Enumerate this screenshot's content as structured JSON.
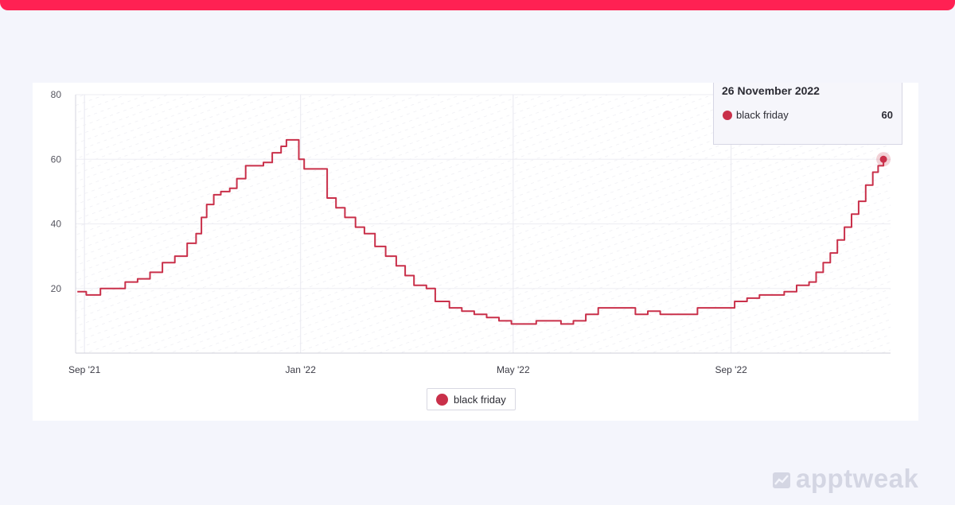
{
  "brand": {
    "name": "apptweak",
    "icon": "chart-logo-icon"
  },
  "colors": {
    "accent_bar": "#ff2153",
    "series": "#c9304a",
    "grid": "#e6e6ee"
  },
  "tooltip": {
    "date": "26 November 2022",
    "series": "black friday",
    "value": "60"
  },
  "legend": {
    "label": "black friday"
  },
  "chart_data": {
    "type": "line",
    "title": "",
    "xlabel": "",
    "ylabel": "",
    "ylim": [
      0,
      80
    ],
    "yticks": [
      20,
      40,
      60,
      80
    ],
    "xlim": [
      "2021-08-27",
      "2022-11-30"
    ],
    "xticks": [
      {
        "date": "2021-09-01",
        "label": "Sep '21"
      },
      {
        "date": "2022-01-01",
        "label": "Jan '22"
      },
      {
        "date": "2022-05-01",
        "label": "May '22"
      },
      {
        "date": "2022-09-01",
        "label": "Sep '22"
      }
    ],
    "grid": true,
    "legend_position": "bottom-center",
    "series": [
      {
        "name": "black friday",
        "color": "#c9304a",
        "points": [
          [
            "2021-08-28",
            19
          ],
          [
            "2021-09-02",
            18
          ],
          [
            "2021-09-10",
            20
          ],
          [
            "2021-09-17",
            20
          ],
          [
            "2021-09-24",
            22
          ],
          [
            "2021-10-01",
            23
          ],
          [
            "2021-10-08",
            25
          ],
          [
            "2021-10-15",
            28
          ],
          [
            "2021-10-22",
            30
          ],
          [
            "2021-10-29",
            34
          ],
          [
            "2021-11-03",
            37
          ],
          [
            "2021-11-06",
            42
          ],
          [
            "2021-11-09",
            46
          ],
          [
            "2021-11-13",
            49
          ],
          [
            "2021-11-17",
            50
          ],
          [
            "2021-11-22",
            51
          ],
          [
            "2021-11-26",
            54
          ],
          [
            "2021-12-01",
            58
          ],
          [
            "2021-12-06",
            58
          ],
          [
            "2021-12-11",
            59
          ],
          [
            "2021-12-16",
            62
          ],
          [
            "2021-12-21",
            64
          ],
          [
            "2021-12-24",
            66
          ],
          [
            "2021-12-28",
            66
          ],
          [
            "2021-12-31",
            60
          ],
          [
            "2022-01-03",
            57
          ],
          [
            "2022-01-11",
            57
          ],
          [
            "2022-01-16",
            48
          ],
          [
            "2022-01-21",
            45
          ],
          [
            "2022-01-26",
            42
          ],
          [
            "2022-02-01",
            39
          ],
          [
            "2022-02-06",
            37
          ],
          [
            "2022-02-12",
            33
          ],
          [
            "2022-02-18",
            30
          ],
          [
            "2022-02-24",
            27
          ],
          [
            "2022-03-01",
            24
          ],
          [
            "2022-03-06",
            21
          ],
          [
            "2022-03-13",
            20
          ],
          [
            "2022-03-18",
            16
          ],
          [
            "2022-03-26",
            14
          ],
          [
            "2022-04-02",
            13
          ],
          [
            "2022-04-09",
            12
          ],
          [
            "2022-04-16",
            11
          ],
          [
            "2022-04-23",
            10
          ],
          [
            "2022-04-30",
            9
          ],
          [
            "2022-05-07",
            9
          ],
          [
            "2022-05-14",
            10
          ],
          [
            "2022-05-21",
            10
          ],
          [
            "2022-05-28",
            9
          ],
          [
            "2022-06-04",
            10
          ],
          [
            "2022-06-11",
            12
          ],
          [
            "2022-06-18",
            14
          ],
          [
            "2022-06-25",
            14
          ],
          [
            "2022-07-02",
            14
          ],
          [
            "2022-07-09",
            12
          ],
          [
            "2022-07-16",
            13
          ],
          [
            "2022-07-23",
            12
          ],
          [
            "2022-07-30",
            12
          ],
          [
            "2022-08-06",
            12
          ],
          [
            "2022-08-13",
            14
          ],
          [
            "2022-08-20",
            14
          ],
          [
            "2022-08-27",
            14
          ],
          [
            "2022-09-03",
            16
          ],
          [
            "2022-09-10",
            17
          ],
          [
            "2022-09-17",
            18
          ],
          [
            "2022-09-24",
            18
          ],
          [
            "2022-10-01",
            19
          ],
          [
            "2022-10-08",
            21
          ],
          [
            "2022-10-15",
            22
          ],
          [
            "2022-10-19",
            25
          ],
          [
            "2022-10-23",
            28
          ],
          [
            "2022-10-27",
            31
          ],
          [
            "2022-10-31",
            35
          ],
          [
            "2022-11-04",
            39
          ],
          [
            "2022-11-08",
            43
          ],
          [
            "2022-11-12",
            47
          ],
          [
            "2022-11-16",
            52
          ],
          [
            "2022-11-20",
            56
          ],
          [
            "2022-11-23",
            58
          ],
          [
            "2022-11-26",
            60
          ]
        ]
      }
    ]
  }
}
